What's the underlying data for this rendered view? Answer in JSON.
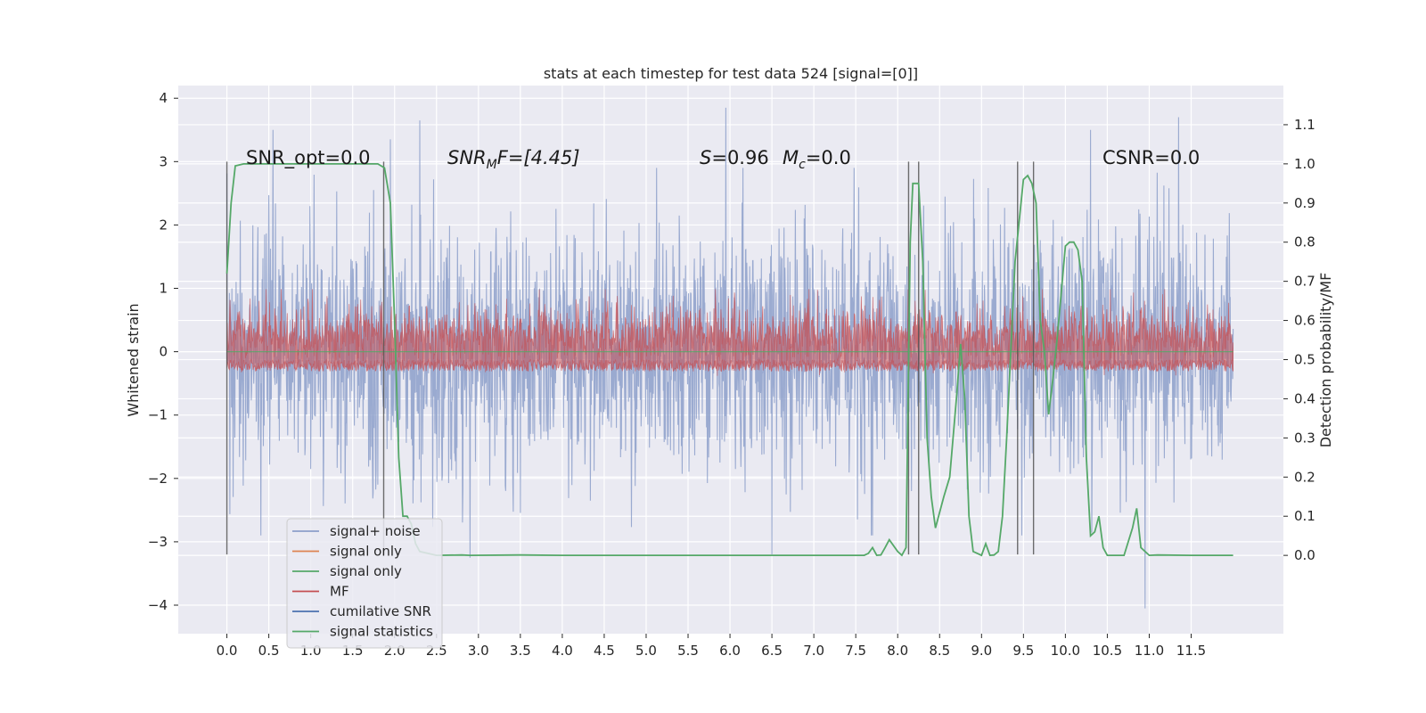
{
  "chart_data": {
    "type": "line",
    "title": "stats at each timestep for test data 524 [signal=[0]]",
    "ylabel": "Whitened strain",
    "y2label": "Detection probability/MF",
    "xlim": [
      -0.58,
      12.6
    ],
    "ylim": [
      -4.45,
      4.2
    ],
    "y2lim": [
      -0.2,
      1.2
    ],
    "x_ticks": [
      "0.0",
      "0.5",
      "1.0",
      "1.5",
      "2.0",
      "2.5",
      "3.0",
      "3.5",
      "4.0",
      "4.5",
      "5.0",
      "5.5",
      "6.0",
      "6.5",
      "7.0",
      "7.5",
      "8.0",
      "8.5",
      "9.0",
      "9.5",
      "10.0",
      "10.5",
      "11.0",
      "11.5"
    ],
    "y_ticks": [
      "4",
      "3",
      "2",
      "1",
      "0",
      "−1",
      "−2",
      "−3",
      "−4"
    ],
    "y2_ticks": [
      "1.1",
      "1.0",
      "0.9",
      "0.8",
      "0.7",
      "0.6",
      "0.5",
      "0.4",
      "0.3",
      "0.2",
      "0.1",
      "0.0"
    ],
    "grid": true,
    "legend_position": "lower-left",
    "annotations": {
      "snr_opt": "SNR_opt=0.0",
      "snr_mf_prefix": "SNR",
      "snr_mf_sub": "M",
      "snr_mf_rest": "F=[4.45]",
      "stat_s_prefix": "S",
      "stat_s_rest": "=0.96",
      "stat_mc_prefix": "M",
      "stat_mc_sub": "c",
      "stat_mc_rest": "=0.0",
      "csnr": "CSNR=0.0"
    },
    "legend": [
      {
        "label": "signal+ noise",
        "color": "#8c9fca"
      },
      {
        "label": "signal only",
        "color": "#dd8452"
      },
      {
        "label": "signal only",
        "color": "#55a868"
      },
      {
        "label": "MF",
        "color": "#c44e52"
      },
      {
        "label": "cumilative SNR",
        "color": "#4c72b0"
      },
      {
        "label": "signal statistics",
        "color": "#55a868"
      }
    ],
    "series": [
      {
        "name": "signal+ noise",
        "color": "#8c9fca",
        "x_range": [
          0.0,
          12.0
        ],
        "typical_range": [
          -1.5,
          1.5
        ],
        "peak_range": [
          -4.05,
          3.85
        ],
        "notable_peaks": [
          {
            "x": 0.55,
            "y": 3.5
          },
          {
            "x": 1.95,
            "y": 3.35
          },
          {
            "x": 2.3,
            "y": 3.65
          },
          {
            "x": 5.95,
            "y": 3.85
          },
          {
            "x": 11.35,
            "y": 3.7
          },
          {
            "x": 10.3,
            "y": 3.5
          },
          {
            "x": 10.95,
            "y": -4.05
          },
          {
            "x": 2.9,
            "y": -3.25
          },
          {
            "x": 6.5,
            "y": -3.2
          }
        ]
      },
      {
        "name": "MF",
        "color": "#c44e52",
        "x_range": [
          0.0,
          12.0
        ],
        "typical_range": [
          0.0,
          0.5
        ],
        "peak_range": [
          -0.05,
          1.0
        ]
      },
      {
        "name": "signal statistics",
        "color": "#55a868",
        "points": [
          [
            0.0,
            0.72
          ],
          [
            0.05,
            0.9
          ],
          [
            0.1,
            0.995
          ],
          [
            0.2,
            1.0
          ],
          [
            0.5,
            1.0
          ],
          [
            1.0,
            1.0
          ],
          [
            1.5,
            1.0
          ],
          [
            1.8,
            1.0
          ],
          [
            1.88,
            0.99
          ],
          [
            1.95,
            0.9
          ],
          [
            2.0,
            0.6
          ],
          [
            2.05,
            0.25
          ],
          [
            2.1,
            0.1
          ],
          [
            2.15,
            0.1
          ],
          [
            2.2,
            0.08
          ],
          [
            2.25,
            0.03
          ],
          [
            2.3,
            0.01
          ],
          [
            2.5,
            0.0
          ],
          [
            2.8,
            0.001
          ],
          [
            2.9,
            0.0
          ],
          [
            3.5,
            0.001
          ],
          [
            4.0,
            0.0
          ],
          [
            5.0,
            0.0
          ],
          [
            6.0,
            0.0
          ],
          [
            7.0,
            0.0
          ],
          [
            7.5,
            0.0
          ],
          [
            7.6,
            0.0
          ],
          [
            7.65,
            0.005
          ],
          [
            7.7,
            0.02
          ],
          [
            7.75,
            0.0
          ],
          [
            7.8,
            0.001
          ],
          [
            7.85,
            0.02
          ],
          [
            7.9,
            0.04
          ],
          [
            8.0,
            0.01
          ],
          [
            8.05,
            0.0
          ],
          [
            8.1,
            0.02
          ],
          [
            8.15,
            0.8
          ],
          [
            8.18,
            0.95
          ],
          [
            8.25,
            0.95
          ],
          [
            8.3,
            0.75
          ],
          [
            8.35,
            0.3
          ],
          [
            8.4,
            0.15
          ],
          [
            8.45,
            0.07
          ],
          [
            8.55,
            0.15
          ],
          [
            8.62,
            0.2
          ],
          [
            8.7,
            0.4
          ],
          [
            8.75,
            0.54
          ],
          [
            8.8,
            0.4
          ],
          [
            8.85,
            0.1
          ],
          [
            8.9,
            0.01
          ],
          [
            9.0,
            0.0
          ],
          [
            9.05,
            0.03
          ],
          [
            9.1,
            0.0
          ],
          [
            9.15,
            0.001
          ],
          [
            9.2,
            0.01
          ],
          [
            9.25,
            0.1
          ],
          [
            9.3,
            0.3
          ],
          [
            9.4,
            0.75
          ],
          [
            9.5,
            0.96
          ],
          [
            9.55,
            0.97
          ],
          [
            9.6,
            0.95
          ],
          [
            9.65,
            0.9
          ],
          [
            9.7,
            0.6
          ],
          [
            9.75,
            0.52
          ],
          [
            9.8,
            0.36
          ],
          [
            9.85,
            0.45
          ],
          [
            9.9,
            0.55
          ],
          [
            10.0,
            0.79
          ],
          [
            10.05,
            0.8
          ],
          [
            10.1,
            0.8
          ],
          [
            10.15,
            0.78
          ],
          [
            10.2,
            0.7
          ],
          [
            10.25,
            0.25
          ],
          [
            10.3,
            0.05
          ],
          [
            10.35,
            0.06
          ],
          [
            10.4,
            0.1
          ],
          [
            10.45,
            0.02
          ],
          [
            10.5,
            0.0
          ],
          [
            10.7,
            0.0
          ],
          [
            10.8,
            0.07
          ],
          [
            10.85,
            0.12
          ],
          [
            10.9,
            0.02
          ],
          [
            11.0,
            0.0
          ],
          [
            11.1,
            0.001
          ],
          [
            11.5,
            0.0
          ],
          [
            12.0,
            0.0
          ]
        ]
      }
    ],
    "vertical_lines_x": [
      0.0,
      1.87,
      8.13,
      8.25,
      9.43,
      9.62
    ]
  }
}
